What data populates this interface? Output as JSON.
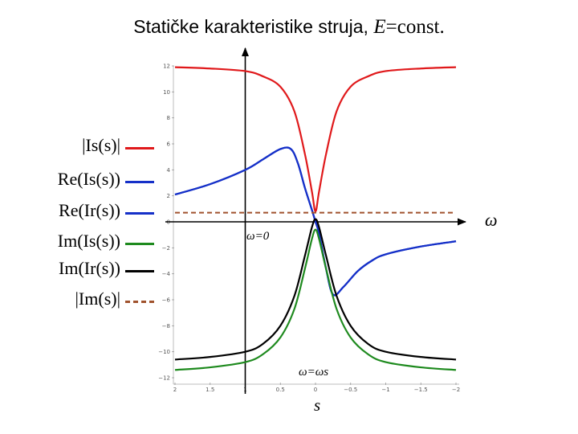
{
  "slide": {
    "title_prefix": "Statičke karakteristike struja, ",
    "title_var": "E",
    "title_suffix": "=const."
  },
  "legend": [
    {
      "label": "|Is(s)|",
      "color": "#e0191b",
      "style": "solid"
    },
    {
      "label": "Re(Is(s))",
      "color": "#1530c8",
      "style": "solid"
    },
    {
      "label": "Re(Ir(s))",
      "color": "#1530c8",
      "style": "solid"
    },
    {
      "label": "Im(Is(s))",
      "color": "#1e8a1e",
      "style": "solid"
    },
    {
      "label": "Im(Ir(s))",
      "color": "#000000",
      "style": "solid"
    },
    {
      "label": "|Im(s)|",
      "color": "#a0522d",
      "style": "dashed"
    }
  ],
  "annotations": {
    "omega_axis": "ω",
    "omega_zero": "ω=0",
    "omega_sync": "ω=ωs",
    "s_axis": "s"
  },
  "chart_data": {
    "type": "line",
    "title": "Statičke karakteristike struja, E=const.",
    "xlabel": "s",
    "ylabel": "",
    "x_ticks": [
      "2",
      "1.5",
      "1",
      "0.5",
      "0",
      "−0.5",
      "−1",
      "−1.5",
      "−2"
    ],
    "y_ticks": [
      "12",
      "10",
      "8",
      "6",
      "4",
      "2",
      "0",
      "−2",
      "−4",
      "−6",
      "−8",
      "−10",
      "−12"
    ],
    "xlim": [
      2,
      -2
    ],
    "ylim": [
      -12,
      12
    ],
    "x_reversed": true,
    "grid": false,
    "legend_position": "left",
    "series": [
      {
        "name": "|Is(s)|",
        "color": "#e0191b",
        "style": "solid",
        "x": [
          2,
          1.5,
          1,
          0.75,
          0.5,
          0.3,
          0.15,
          0.05,
          0,
          -0.05,
          -0.15,
          -0.3,
          -0.5,
          -0.75,
          -1,
          -1.5,
          -2
        ],
        "y": [
          11.9,
          11.8,
          11.6,
          11.2,
          10.4,
          8.5,
          5.2,
          2.3,
          0.8,
          2.3,
          5.2,
          8.5,
          10.4,
          11.2,
          11.6,
          11.8,
          11.9
        ]
      },
      {
        "name": "Re(Is(s))",
        "color": "#1530c8",
        "style": "solid",
        "x": [
          2,
          1.5,
          1,
          0.75,
          0.5,
          0.35,
          0.25,
          0.15,
          0.05,
          0,
          -0.05,
          -0.15,
          -0.25,
          -0.4,
          -0.6,
          -0.8,
          -1,
          -1.5,
          -2
        ],
        "y": [
          2.1,
          2.9,
          4.0,
          4.8,
          5.6,
          5.6,
          4.5,
          2.6,
          0.9,
          0,
          -0.9,
          -3.6,
          -5.6,
          -5.0,
          -3.8,
          -3.0,
          -2.5,
          -1.9,
          -1.5
        ]
      },
      {
        "name": "Re(Ir(s))",
        "color": "#1530c8",
        "style": "solid",
        "x": [
          2,
          1.5,
          1,
          0.75,
          0.5,
          0.35,
          0.25,
          0.15,
          0.05,
          0,
          -0.05,
          -0.15,
          -0.25,
          -0.4,
          -0.6,
          -0.8,
          -1,
          -1.5,
          -2
        ],
        "y": [
          2.1,
          2.9,
          4.0,
          4.8,
          5.6,
          5.6,
          4.5,
          2.6,
          0.9,
          0,
          -0.9,
          -3.6,
          -5.6,
          -5.0,
          -3.8,
          -3.0,
          -2.5,
          -1.9,
          -1.5
        ]
      },
      {
        "name": "Im(Is(s))",
        "color": "#1e8a1e",
        "style": "solid",
        "x": [
          2,
          1.5,
          1,
          0.75,
          0.5,
          0.3,
          0.15,
          0.05,
          0,
          -0.05,
          -0.15,
          -0.3,
          -0.5,
          -0.75,
          -1,
          -1.5,
          -2
        ],
        "y": [
          -11.4,
          -11.2,
          -10.8,
          -10.2,
          -8.9,
          -6.7,
          -3.6,
          -1.3,
          -0.6,
          -1.3,
          -3.6,
          -6.7,
          -8.9,
          -10.2,
          -10.8,
          -11.2,
          -11.4
        ]
      },
      {
        "name": "Im(Ir(s))",
        "color": "#000000",
        "style": "solid",
        "x": [
          2,
          1.5,
          1,
          0.75,
          0.5,
          0.3,
          0.15,
          0.05,
          0,
          -0.05,
          -0.15,
          -0.3,
          -0.5,
          -0.75,
          -1,
          -1.5,
          -2
        ],
        "y": [
          -10.6,
          -10.4,
          -10.0,
          -9.4,
          -8.0,
          -5.7,
          -2.6,
          -0.4,
          0.2,
          -0.4,
          -2.6,
          -5.7,
          -8.0,
          -9.4,
          -10.0,
          -10.4,
          -10.6
        ]
      },
      {
        "name": "|Im(s)|",
        "color": "#a0522d",
        "style": "dashed",
        "x": [
          2,
          -2
        ],
        "y": [
          0.7,
          0.7
        ]
      }
    ]
  }
}
